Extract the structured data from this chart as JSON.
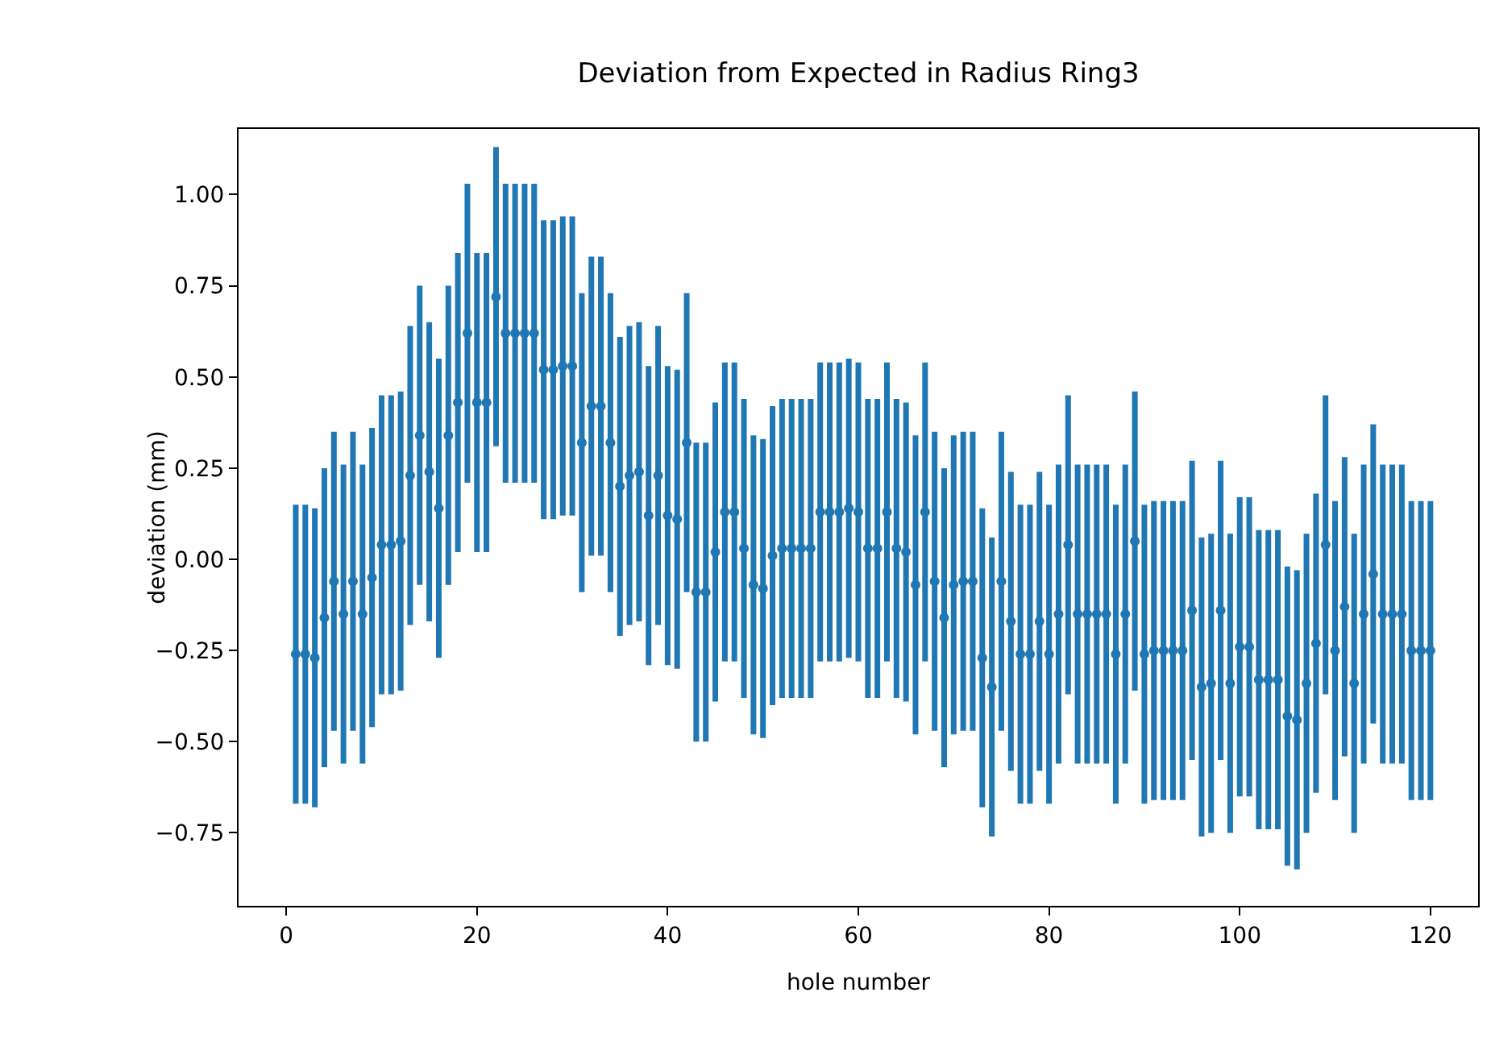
{
  "chart_data": {
    "type": "scatter",
    "title": "Deviation from Expected in Radius Ring3",
    "xlabel": "hole number",
    "ylabel": "deviation (mm)",
    "x": [
      1,
      2,
      3,
      4,
      5,
      6,
      7,
      8,
      9,
      10,
      11,
      12,
      13,
      14,
      15,
      16,
      17,
      18,
      19,
      20,
      21,
      22,
      23,
      24,
      25,
      26,
      27,
      28,
      29,
      30,
      31,
      32,
      33,
      34,
      35,
      36,
      37,
      38,
      39,
      40,
      41,
      42,
      43,
      44,
      45,
      46,
      47,
      48,
      49,
      50,
      51,
      52,
      53,
      54,
      55,
      56,
      57,
      58,
      59,
      60,
      61,
      62,
      63,
      64,
      65,
      66,
      67,
      68,
      69,
      70,
      71,
      72,
      73,
      74,
      75,
      76,
      77,
      78,
      79,
      80,
      81,
      82,
      83,
      84,
      85,
      86,
      87,
      88,
      89,
      90,
      91,
      92,
      93,
      94,
      95,
      96,
      97,
      98,
      99,
      100,
      101,
      102,
      103,
      104,
      105,
      106,
      107,
      108,
      109,
      110,
      111,
      112,
      113,
      114,
      115,
      116,
      117,
      118,
      119,
      120
    ],
    "values": [
      -0.26,
      -0.26,
      -0.27,
      -0.16,
      -0.06,
      -0.15,
      -0.06,
      -0.15,
      -0.05,
      0.04,
      0.04,
      0.05,
      0.23,
      0.34,
      0.24,
      0.14,
      0.34,
      0.43,
      0.62,
      0.43,
      0.43,
      0.72,
      0.62,
      0.62,
      0.62,
      0.62,
      0.52,
      0.52,
      0.53,
      0.53,
      0.32,
      0.42,
      0.42,
      0.32,
      0.2,
      0.23,
      0.24,
      0.12,
      0.23,
      0.12,
      0.11,
      0.32,
      -0.09,
      -0.09,
      0.02,
      0.13,
      0.13,
      0.03,
      -0.07,
      -0.08,
      0.01,
      0.03,
      0.03,
      0.03,
      0.03,
      0.13,
      0.13,
      0.13,
      0.14,
      0.13,
      0.03,
      0.03,
      0.13,
      0.03,
      0.02,
      -0.07,
      0.13,
      -0.06,
      -0.16,
      -0.07,
      -0.06,
      -0.06,
      -0.27,
      -0.35,
      -0.06,
      -0.17,
      -0.26,
      -0.26,
      -0.17,
      -0.26,
      -0.15,
      0.04,
      -0.15,
      -0.15,
      -0.15,
      -0.15,
      -0.26,
      -0.15,
      0.05,
      -0.26,
      -0.25,
      -0.25,
      -0.25,
      -0.25,
      -0.14,
      -0.35,
      -0.34,
      -0.14,
      -0.34,
      -0.24,
      -0.24,
      -0.33,
      -0.33,
      -0.33,
      -0.43,
      -0.44,
      -0.34,
      -0.23,
      0.04,
      -0.25,
      -0.13,
      -0.34,
      -0.15,
      -0.04,
      -0.15,
      -0.15,
      -0.15,
      -0.25,
      -0.25,
      -0.25
    ],
    "errors": [
      0.41,
      0.41,
      0.41,
      0.41,
      0.41,
      0.41,
      0.41,
      0.41,
      0.41,
      0.41,
      0.41,
      0.41,
      0.41,
      0.41,
      0.41,
      0.41,
      0.41,
      0.41,
      0.41,
      0.41,
      0.41,
      0.41,
      0.41,
      0.41,
      0.41,
      0.41,
      0.41,
      0.41,
      0.41,
      0.41,
      0.41,
      0.41,
      0.41,
      0.41,
      0.41,
      0.41,
      0.41,
      0.41,
      0.41,
      0.41,
      0.41,
      0.41,
      0.41,
      0.41,
      0.41,
      0.41,
      0.41,
      0.41,
      0.41,
      0.41,
      0.41,
      0.41,
      0.41,
      0.41,
      0.41,
      0.41,
      0.41,
      0.41,
      0.41,
      0.41,
      0.41,
      0.41,
      0.41,
      0.41,
      0.41,
      0.41,
      0.41,
      0.41,
      0.41,
      0.41,
      0.41,
      0.41,
      0.41,
      0.41,
      0.41,
      0.41,
      0.41,
      0.41,
      0.41,
      0.41,
      0.41,
      0.41,
      0.41,
      0.41,
      0.41,
      0.41,
      0.41,
      0.41,
      0.41,
      0.41,
      0.41,
      0.41,
      0.41,
      0.41,
      0.41,
      0.41,
      0.41,
      0.41,
      0.41,
      0.41,
      0.41,
      0.41,
      0.41,
      0.41,
      0.41,
      0.41,
      0.41,
      0.41,
      0.41,
      0.41,
      0.41,
      0.41,
      0.41,
      0.41,
      0.41,
      0.41,
      0.41,
      0.41,
      0.41,
      0.41
    ],
    "color": "#1f77b4",
    "marker": "circle",
    "grid": false,
    "xlim": [
      -5,
      125
    ],
    "xticks": [
      0,
      20,
      40,
      60,
      80,
      100,
      120
    ],
    "ylim": [
      -0.95,
      1.18
    ],
    "yticks": [
      {
        "value": -0.75,
        "label": "−0.75"
      },
      {
        "value": -0.5,
        "label": "−0.50"
      },
      {
        "value": -0.25,
        "label": "−0.25"
      },
      {
        "value": 0,
        "label": "0.00"
      },
      {
        "value": 0.25,
        "label": "0.25"
      },
      {
        "value": 0.5,
        "label": "0.50"
      },
      {
        "value": 0.75,
        "label": "0.75"
      },
      {
        "value": 1,
        "label": "1.00"
      }
    ]
  }
}
